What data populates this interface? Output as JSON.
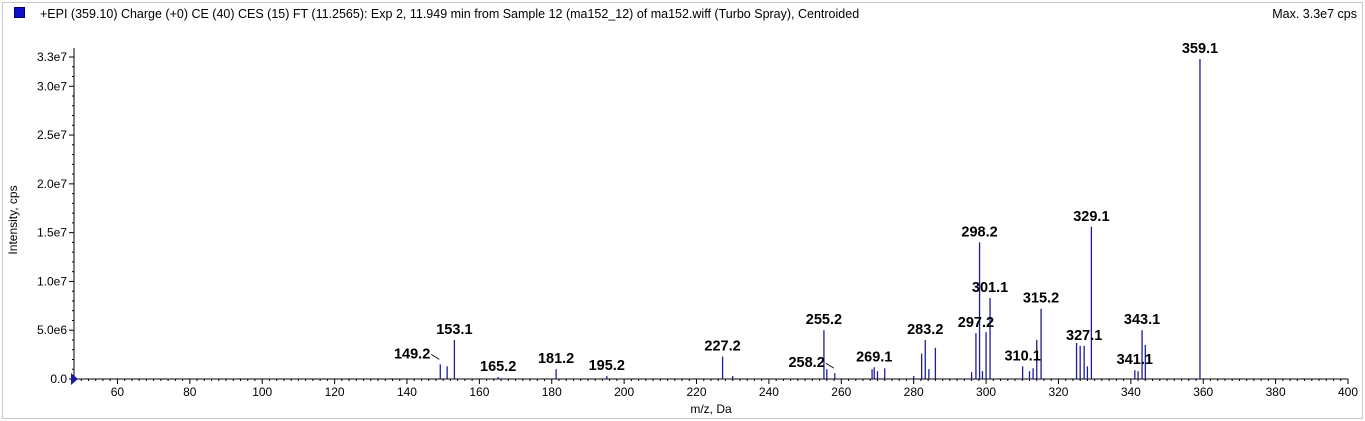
{
  "header": {
    "title": "+EPI (359.10) Charge (+0) CE (40) CES (15) FT (11.2565): Exp 2, 11.949 min from Sample 12 (ma152_12) of ma152.wiff (Turbo Spray), Centroided",
    "max_label": "Max. 3.3e7 cps",
    "swatch_color": "#1010c8"
  },
  "chart_data": {
    "type": "bar",
    "xlabel": "m/z, Da",
    "ylabel": "Intensity, cps",
    "xlim": [
      48,
      400
    ],
    "ylim": [
      0,
      33000000
    ],
    "x_ticks": [
      60,
      80,
      100,
      120,
      140,
      160,
      180,
      200,
      220,
      240,
      260,
      280,
      300,
      320,
      340,
      360,
      380,
      400
    ],
    "y_ticks": [
      {
        "value": 0,
        "label": "0.0"
      },
      {
        "value": 5000000,
        "label": "5.0e6"
      },
      {
        "value": 10000000,
        "label": "1.0e7"
      },
      {
        "value": 15000000,
        "label": "1.5e7"
      },
      {
        "value": 20000000,
        "label": "2.0e7"
      },
      {
        "value": 25000000,
        "label": "2.5e7"
      },
      {
        "value": 30000000,
        "label": "3.0e7"
      },
      {
        "value": 33000000,
        "label": "3.3e7"
      }
    ],
    "bar_color": "#1c1c9c",
    "peaks": [
      {
        "mz": 149.2,
        "intensity": 1500000
      },
      {
        "mz": 151.1,
        "intensity": 1300000
      },
      {
        "mz": 153.1,
        "intensity": 4000000
      },
      {
        "mz": 165.2,
        "intensity": 200000
      },
      {
        "mz": 181.2,
        "intensity": 1000000
      },
      {
        "mz": 195.2,
        "intensity": 300000
      },
      {
        "mz": 227.2,
        "intensity": 2300000
      },
      {
        "mz": 230.0,
        "intensity": 300000
      },
      {
        "mz": 255.2,
        "intensity": 5000000
      },
      {
        "mz": 256.0,
        "intensity": 1000000
      },
      {
        "mz": 258.2,
        "intensity": 600000
      },
      {
        "mz": 268.5,
        "intensity": 1000000
      },
      {
        "mz": 269.1,
        "intensity": 1200000
      },
      {
        "mz": 270.0,
        "intensity": 800000
      },
      {
        "mz": 272.0,
        "intensity": 1100000
      },
      {
        "mz": 280.0,
        "intensity": 300000
      },
      {
        "mz": 282.2,
        "intensity": 2600000
      },
      {
        "mz": 283.2,
        "intensity": 4000000
      },
      {
        "mz": 284.2,
        "intensity": 1000000
      },
      {
        "mz": 286.0,
        "intensity": 3200000
      },
      {
        "mz": 296.0,
        "intensity": 700000
      },
      {
        "mz": 297.2,
        "intensity": 4700000
      },
      {
        "mz": 298.2,
        "intensity": 14000000
      },
      {
        "mz": 299.0,
        "intensity": 800000
      },
      {
        "mz": 300.0,
        "intensity": 4800000
      },
      {
        "mz": 301.1,
        "intensity": 8300000
      },
      {
        "mz": 310.1,
        "intensity": 1300000
      },
      {
        "mz": 312.0,
        "intensity": 800000
      },
      {
        "mz": 313.0,
        "intensity": 1100000
      },
      {
        "mz": 314.0,
        "intensity": 4000000
      },
      {
        "mz": 315.2,
        "intensity": 7200000
      },
      {
        "mz": 325.0,
        "intensity": 3700000
      },
      {
        "mz": 326.0,
        "intensity": 3400000
      },
      {
        "mz": 327.1,
        "intensity": 3400000
      },
      {
        "mz": 328.0,
        "intensity": 1300000
      },
      {
        "mz": 329.1,
        "intensity": 15600000
      },
      {
        "mz": 341.1,
        "intensity": 900000
      },
      {
        "mz": 342.0,
        "intensity": 800000
      },
      {
        "mz": 343.1,
        "intensity": 5000000
      },
      {
        "mz": 344.0,
        "intensity": 3500000
      },
      {
        "mz": 359.1,
        "intensity": 32800000
      }
    ],
    "annotations": [
      {
        "text": "149.2",
        "mz": 149.2,
        "intensity": 1500000,
        "leader": true
      },
      {
        "text": "153.1",
        "mz": 153.1,
        "intensity": 4000000
      },
      {
        "text": "165.2",
        "mz": 165.2,
        "intensity": 200000
      },
      {
        "text": "181.2",
        "mz": 181.2,
        "intensity": 1000000
      },
      {
        "text": "195.2",
        "mz": 195.2,
        "intensity": 300000
      },
      {
        "text": "227.2",
        "mz": 227.2,
        "intensity": 2300000
      },
      {
        "text": "255.2",
        "mz": 255.2,
        "intensity": 5000000
      },
      {
        "text": "258.2",
        "mz": 258.2,
        "intensity": 600000,
        "leader": true
      },
      {
        "text": "269.1",
        "mz": 269.1,
        "intensity": 1200000
      },
      {
        "text": "283.2",
        "mz": 283.2,
        "intensity": 4000000
      },
      {
        "text": "297.2",
        "mz": 297.2,
        "intensity": 4700000
      },
      {
        "text": "298.2",
        "mz": 298.2,
        "intensity": 14000000
      },
      {
        "text": "301.1",
        "mz": 301.1,
        "intensity": 8300000
      },
      {
        "text": "310.1",
        "mz": 310.1,
        "intensity": 1300000
      },
      {
        "text": "315.2",
        "mz": 315.2,
        "intensity": 7200000
      },
      {
        "text": "327.1",
        "mz": 327.1,
        "intensity": 3400000
      },
      {
        "text": "329.1",
        "mz": 329.1,
        "intensity": 15600000
      },
      {
        "text": "341.1",
        "mz": 341.1,
        "intensity": 900000
      },
      {
        "text": "343.1",
        "mz": 343.1,
        "intensity": 5000000
      },
      {
        "text": "359.1",
        "mz": 359.1,
        "intensity": 32800000
      }
    ]
  }
}
